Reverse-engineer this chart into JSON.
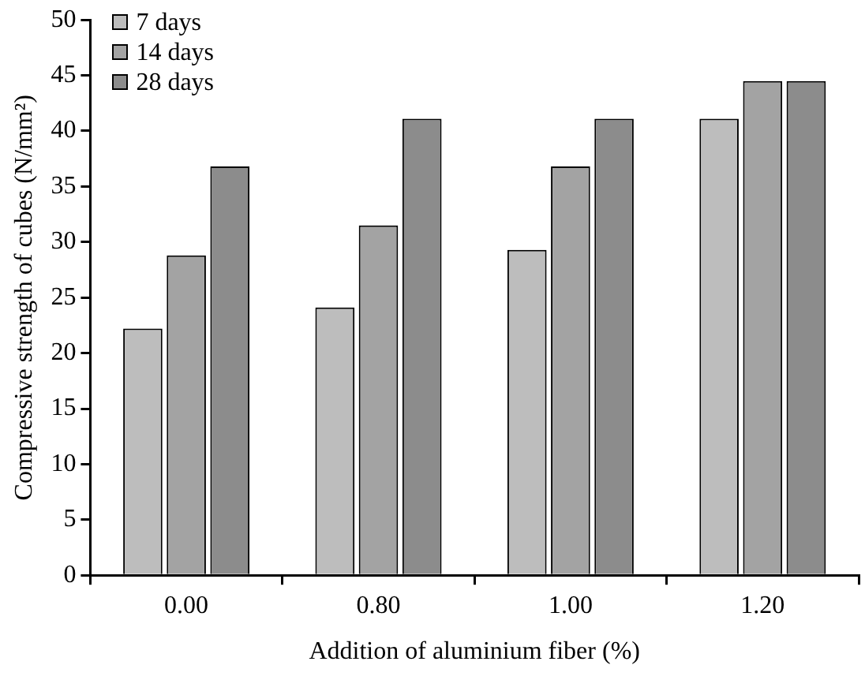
{
  "chart_data": {
    "type": "bar",
    "xlabel": "Addition of aluminium fiber (%)",
    "ylabel": "Compressive strength of cubes (N/mm²)",
    "categories": [
      "0.00",
      "0.80",
      "1.00",
      "1.20"
    ],
    "series": [
      {
        "name": "7 days",
        "color": "#bdbdbd",
        "values": [
          22.2,
          24.1,
          29.3,
          41.1
        ]
      },
      {
        "name": "14 days",
        "color": "#a3a3a3",
        "values": [
          28.8,
          31.5,
          36.8,
          44.5
        ]
      },
      {
        "name": "28 days",
        "color": "#8c8c8c",
        "values": [
          36.8,
          41.1,
          41.1,
          44.5
        ]
      }
    ],
    "ylim": [
      0,
      50
    ],
    "yticks": [
      0,
      5,
      10,
      15,
      20,
      25,
      30,
      35,
      40,
      45,
      50
    ],
    "grid": false,
    "legend": "top left"
  }
}
